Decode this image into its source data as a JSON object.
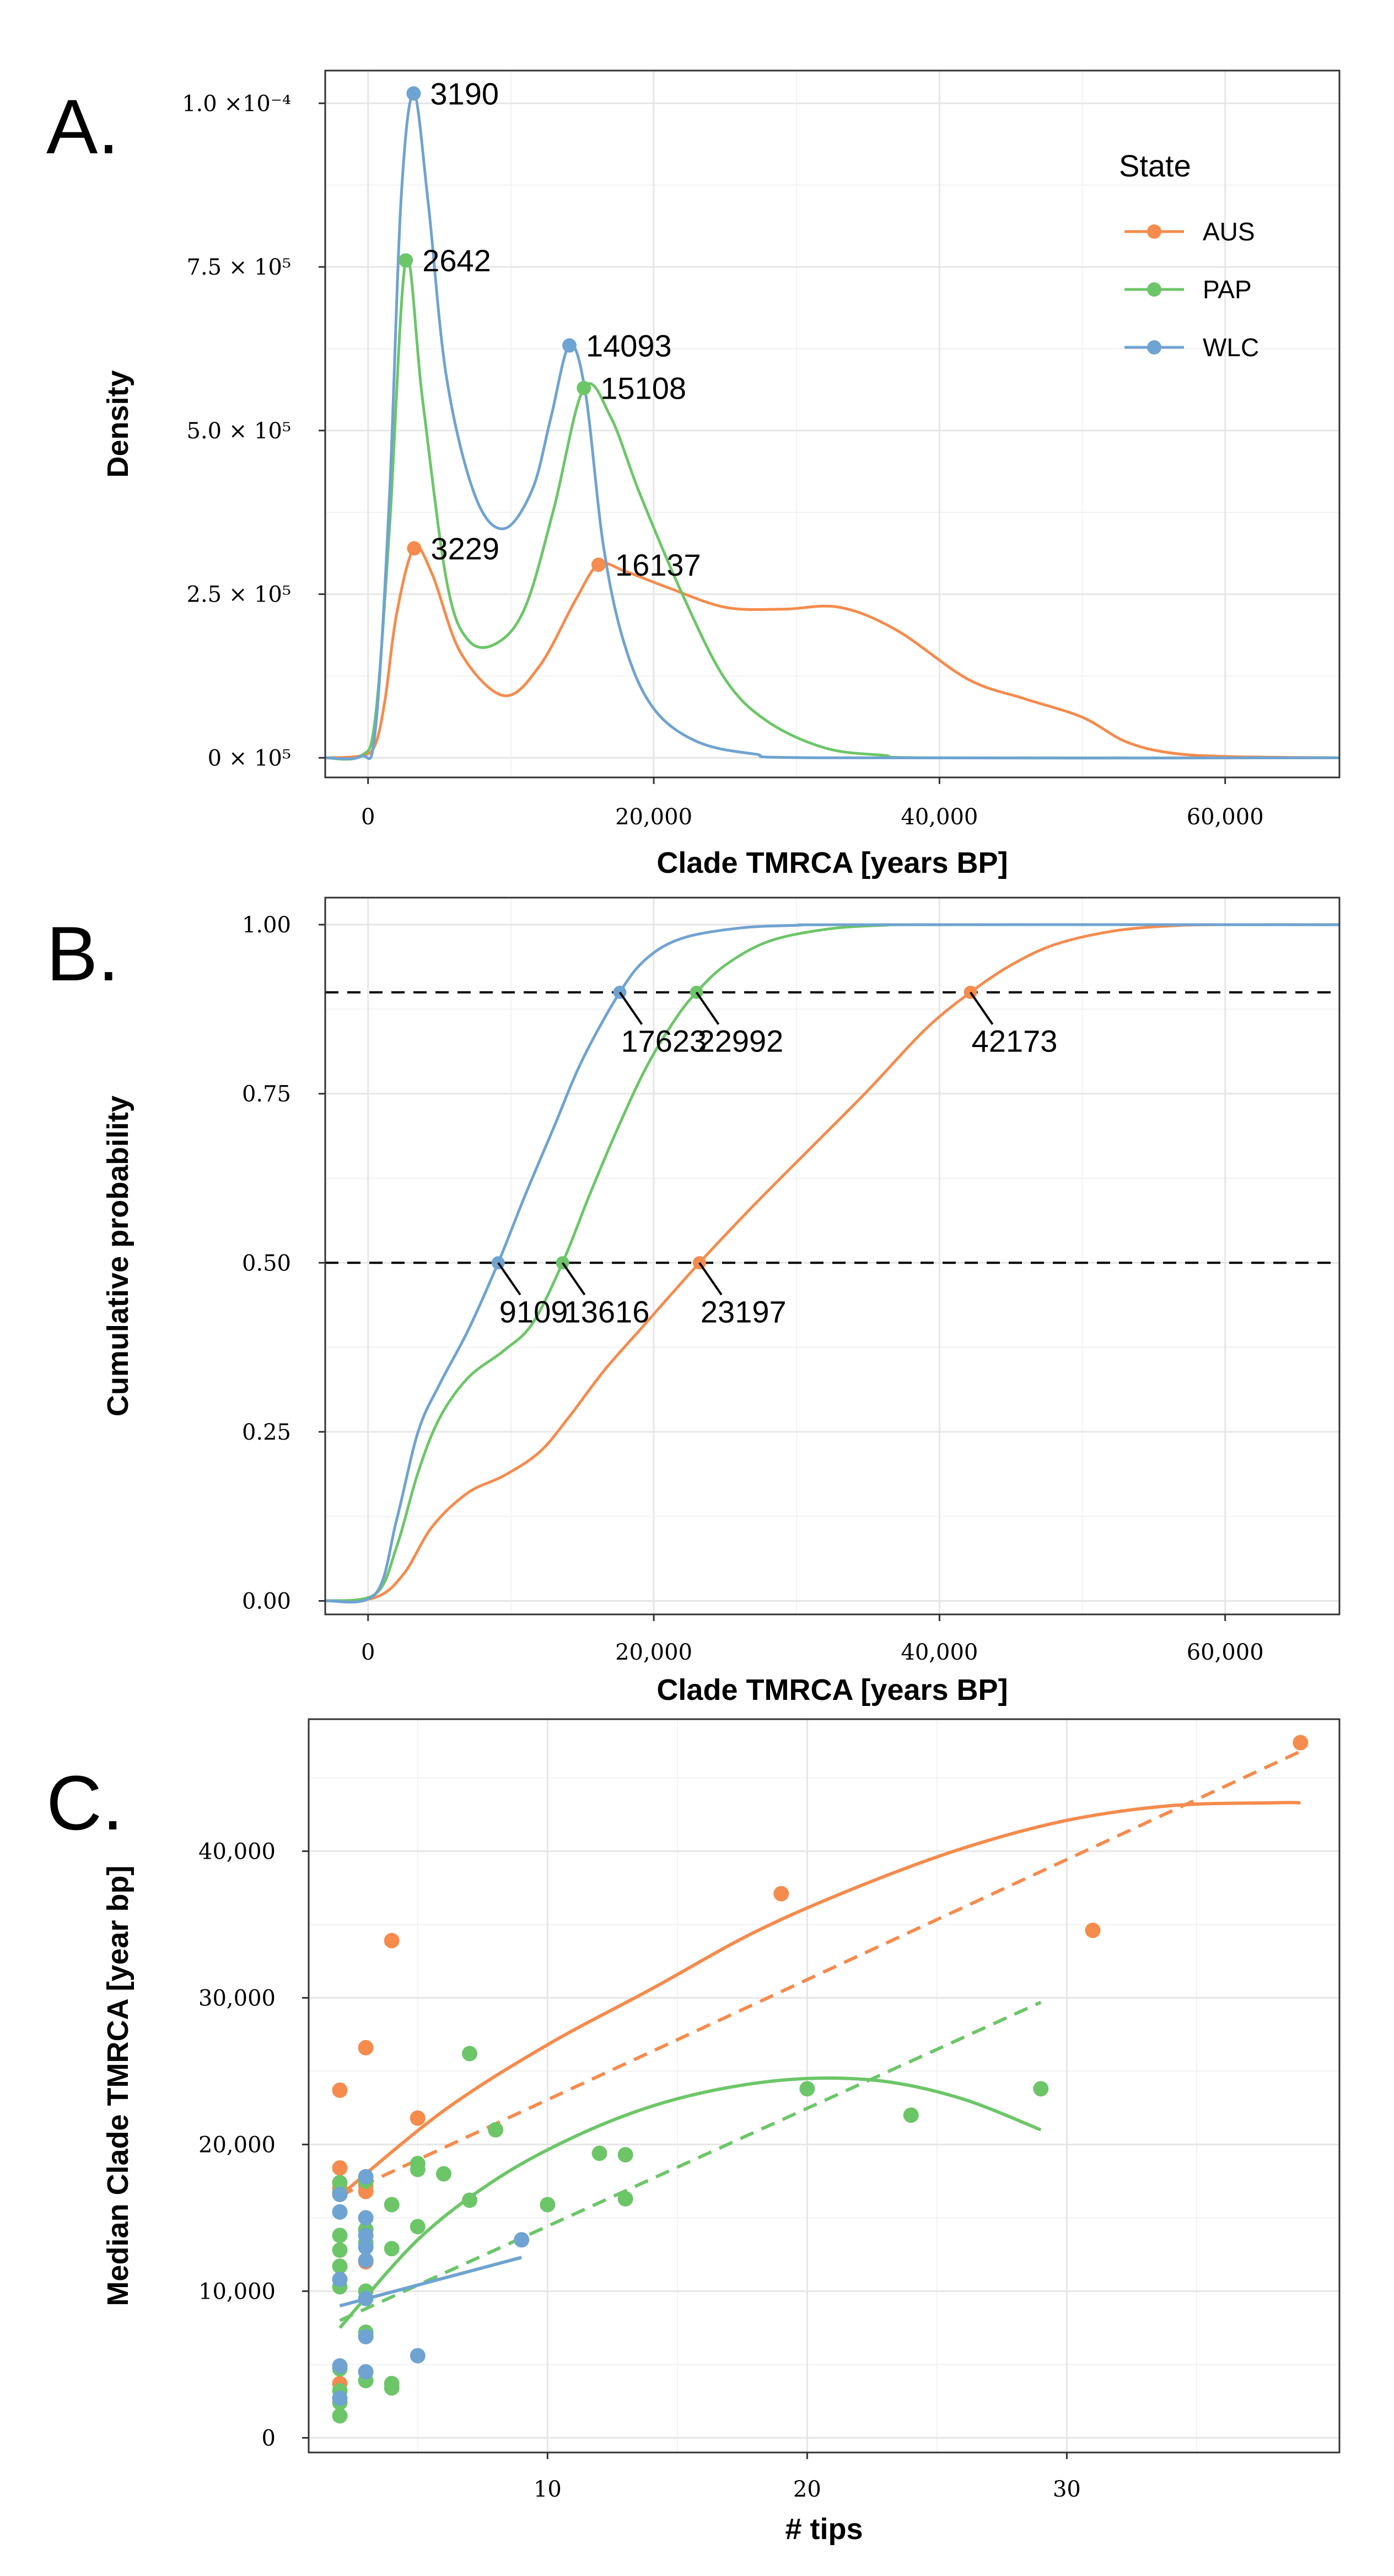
{
  "colors": {
    "AUS": "#f58b4c",
    "PAP": "#6cc668",
    "WLC": "#6fa3d1"
  },
  "chart_data": [
    {
      "type": "line",
      "panel": "A.",
      "title": "",
      "xlabel": "Clade TMRCA [years BP]",
      "ylabel": "Density",
      "xlim": [
        -3000,
        68000
      ],
      "ylim": [
        -3e-06,
        0.000105
      ],
      "xticks": [
        0,
        20000,
        40000,
        60000
      ],
      "xtick_labels": [
        "0",
        "20,000",
        "40,000",
        "60,000"
      ],
      "yticks": [
        0,
        2.5e-05,
        5e-05,
        7.5e-05,
        0.0001
      ],
      "ytick_labels": [
        "0 × 10⁵",
        "2.5 × 10⁵",
        "5.0 × 10⁵",
        "7.5 × 10⁵",
        "1.0 ×10⁻⁴"
      ],
      "legend": {
        "title": "State",
        "position": "top-right",
        "entries": [
          "AUS",
          "PAP",
          "WLC"
        ]
      },
      "series": [
        {
          "name": "AUS",
          "points": [
            [
              -3000,
              0
            ],
            [
              -500,
              3e-07
            ],
            [
              500,
              2e-06
            ],
            [
              1200,
              9e-06
            ],
            [
              2000,
              2.2e-05
            ],
            [
              3229,
              3.2e-05
            ],
            [
              4500,
              2.8e-05
            ],
            [
              6500,
              1.6e-05
            ],
            [
              9500,
              9.5e-06
            ],
            [
              12000,
              1.4e-05
            ],
            [
              14500,
              2.4e-05
            ],
            [
              16137,
              2.95e-05
            ],
            [
              18000,
              2.85e-05
            ],
            [
              21000,
              2.6e-05
            ],
            [
              25000,
              2.3e-05
            ],
            [
              29000,
              2.27e-05
            ],
            [
              33000,
              2.3e-05
            ],
            [
              37000,
              1.95e-05
            ],
            [
              42000,
              1.2e-05
            ],
            [
              46000,
              9e-06
            ],
            [
              50000,
              6.2e-06
            ],
            [
              53000,
              2.5e-06
            ],
            [
              56000,
              8e-07
            ],
            [
              60000,
              2e-07
            ],
            [
              68000,
              0
            ]
          ]
        },
        {
          "name": "PAP",
          "points": [
            [
              -3000,
              0
            ],
            [
              -500,
              3e-07
            ],
            [
              500,
              6e-06
            ],
            [
              1500,
              3.5e-05
            ],
            [
              2642,
              7.6e-05
            ],
            [
              3800,
              5.5e-05
            ],
            [
              5500,
              2.7e-05
            ],
            [
              7000,
              1.8e-05
            ],
            [
              9000,
              1.75e-05
            ],
            [
              11000,
              2.3e-05
            ],
            [
              13000,
              3.8e-05
            ],
            [
              15108,
              5.65e-05
            ],
            [
              17000,
              5.2e-05
            ],
            [
              19000,
              4.05e-05
            ],
            [
              22000,
              2.5e-05
            ],
            [
              25000,
              1.2e-05
            ],
            [
              28000,
              5.5e-06
            ],
            [
              32000,
              1.5e-06
            ],
            [
              36000,
              4e-07
            ],
            [
              40000,
              0
            ],
            [
              68000,
              0
            ]
          ]
        },
        {
          "name": "WLC",
          "points": [
            [
              -3000,
              0
            ],
            [
              -500,
              2e-07
            ],
            [
              500,
              4e-06
            ],
            [
              1500,
              4e-05
            ],
            [
              2300,
              8.5e-05
            ],
            [
              3190,
              0.0001015
            ],
            [
              4200,
              8.5e-05
            ],
            [
              5500,
              5.8e-05
            ],
            [
              7500,
              4e-05
            ],
            [
              9500,
              3.5e-05
            ],
            [
              11500,
              4.1e-05
            ],
            [
              12800,
              5.2e-05
            ],
            [
              14093,
              6.3e-05
            ],
            [
              15200,
              5.6e-05
            ],
            [
              16500,
              3.2e-05
            ],
            [
              18000,
              1.7e-05
            ],
            [
              20000,
              7.5e-06
            ],
            [
              23000,
              2.5e-06
            ],
            [
              27000,
              6e-07
            ],
            [
              32000,
              0
            ],
            [
              68000,
              0
            ]
          ]
        }
      ],
      "annotations": [
        {
          "series": "WLC",
          "x": 3190,
          "y": 0.0001015,
          "label": "3190"
        },
        {
          "series": "PAP",
          "x": 2642,
          "y": 7.6e-05,
          "label": "2642"
        },
        {
          "series": "WLC",
          "x": 14093,
          "y": 6.3e-05,
          "label": "14093"
        },
        {
          "series": "PAP",
          "x": 15108,
          "y": 5.65e-05,
          "label": "15108"
        },
        {
          "series": "AUS",
          "x": 3229,
          "y": 3.2e-05,
          "label": "3229"
        },
        {
          "series": "AUS",
          "x": 16137,
          "y": 2.95e-05,
          "label": "16137"
        }
      ]
    },
    {
      "type": "line",
      "panel": "B.",
      "title": "",
      "xlabel": "Clade TMRCA [years BP]",
      "ylabel": "Cumulative  probability",
      "xlim": [
        -3000,
        68000
      ],
      "ylim": [
        -0.02,
        1.04
      ],
      "xticks": [
        0,
        20000,
        40000,
        60000
      ],
      "xtick_labels": [
        "0",
        "20,000",
        "40,000",
        "60,000"
      ],
      "yticks": [
        0,
        0.25,
        0.5,
        0.75,
        1.0
      ],
      "ytick_labels": [
        "0.00",
        "0.25",
        "0.50",
        "0.75",
        "1.00"
      ],
      "hlines": [
        0.5,
        0.9
      ],
      "series": [
        {
          "name": "AUS",
          "points": [
            [
              -3000,
              0
            ],
            [
              500,
              0.005
            ],
            [
              2500,
              0.04
            ],
            [
              4500,
              0.11
            ],
            [
              7000,
              0.16
            ],
            [
              9500,
              0.185
            ],
            [
              12000,
              0.22
            ],
            [
              14000,
              0.27
            ],
            [
              16500,
              0.34
            ],
            [
              19000,
              0.4
            ],
            [
              23197,
              0.5
            ],
            [
              27000,
              0.585
            ],
            [
              31000,
              0.67
            ],
            [
              35000,
              0.755
            ],
            [
              39000,
              0.845
            ],
            [
              42173,
              0.9
            ],
            [
              45000,
              0.94
            ],
            [
              48000,
              0.97
            ],
            [
              52000,
              0.99
            ],
            [
              56000,
              0.998
            ],
            [
              60000,
              1.0
            ],
            [
              68000,
              1.0
            ]
          ]
        },
        {
          "name": "PAP",
          "points": [
            [
              -3000,
              0
            ],
            [
              500,
              0.01
            ],
            [
              2000,
              0.08
            ],
            [
              3500,
              0.19
            ],
            [
              5000,
              0.27
            ],
            [
              7000,
              0.33
            ],
            [
              9500,
              0.37
            ],
            [
              11500,
              0.41
            ],
            [
              13616,
              0.5
            ],
            [
              15500,
              0.6
            ],
            [
              17500,
              0.7
            ],
            [
              19500,
              0.79
            ],
            [
              21500,
              0.86
            ],
            [
              22992,
              0.9
            ],
            [
              25000,
              0.94
            ],
            [
              28000,
              0.975
            ],
            [
              32000,
              0.993
            ],
            [
              36000,
              0.999
            ],
            [
              40000,
              1.0
            ],
            [
              68000,
              1.0
            ]
          ]
        },
        {
          "name": "WLC",
          "points": [
            [
              -3000,
              0
            ],
            [
              500,
              0.01
            ],
            [
              2000,
              0.12
            ],
            [
              3500,
              0.25
            ],
            [
              5000,
              0.32
            ],
            [
              7000,
              0.4
            ],
            [
              9109,
              0.5
            ],
            [
              11000,
              0.6
            ],
            [
              13000,
              0.7
            ],
            [
              15000,
              0.8
            ],
            [
              17623,
              0.9
            ],
            [
              19500,
              0.95
            ],
            [
              22000,
              0.98
            ],
            [
              26000,
              0.995
            ],
            [
              30000,
              0.999
            ],
            [
              34000,
              1.0
            ],
            [
              68000,
              1.0
            ]
          ]
        }
      ],
      "annotations": [
        {
          "series": "WLC",
          "x": 9109,
          "y": 0.5,
          "label": "9109"
        },
        {
          "series": "PAP",
          "x": 13616,
          "y": 0.5,
          "label": "13616"
        },
        {
          "series": "AUS",
          "x": 23197,
          "y": 0.5,
          "label": "23197"
        },
        {
          "series": "WLC",
          "x": 17623,
          "y": 0.9,
          "label": "17623"
        },
        {
          "series": "PAP",
          "x": 22992,
          "y": 0.9,
          "label": "22992"
        },
        {
          "series": "AUS",
          "x": 42173,
          "y": 0.9,
          "label": "42173"
        }
      ]
    },
    {
      "type": "scatter",
      "panel": "C.",
      "title": "",
      "xlabel": "# tips",
      "ylabel": "Median Clade TMRCA [year bp]",
      "xlim": [
        0.8,
        40.5
      ],
      "ylim": [
        -1000,
        49000
      ],
      "xticks": [
        10,
        20,
        30
      ],
      "xtick_labels": [
        "10",
        "20",
        "30"
      ],
      "yticks": [
        0,
        10000,
        20000,
        30000,
        40000
      ],
      "ytick_labels": [
        "0",
        "10,000",
        "20,000",
        "30,000",
        "40,000"
      ],
      "points": {
        "AUS": [
          [
            2,
            23700
          ],
          [
            2,
            18400
          ],
          [
            2,
            17000
          ],
          [
            2,
            16600
          ],
          [
            2,
            3700
          ],
          [
            3,
            26600
          ],
          [
            3,
            17200
          ],
          [
            3,
            16800
          ],
          [
            3,
            12000
          ],
          [
            4,
            33900
          ],
          [
            5,
            21800
          ],
          [
            19,
            37100
          ],
          [
            31,
            34600
          ],
          [
            39,
            47400
          ]
        ],
        "PAP": [
          [
            2,
            17400
          ],
          [
            2,
            16700
          ],
          [
            2,
            15400
          ],
          [
            2,
            13800
          ],
          [
            2,
            12800
          ],
          [
            2,
            11700
          ],
          [
            2,
            10300
          ],
          [
            2,
            4700
          ],
          [
            2,
            3200
          ],
          [
            2,
            2400
          ],
          [
            2,
            1500
          ],
          [
            3,
            17500
          ],
          [
            3,
            14200
          ],
          [
            3,
            13300
          ],
          [
            3,
            10000
          ],
          [
            3,
            7200
          ],
          [
            3,
            3900
          ],
          [
            4,
            15900
          ],
          [
            4,
            12900
          ],
          [
            4,
            3700
          ],
          [
            4,
            3400
          ],
          [
            5,
            18700
          ],
          [
            5,
            18300
          ],
          [
            5,
            14400
          ],
          [
            6,
            18000
          ],
          [
            7,
            26200
          ],
          [
            7,
            16200
          ],
          [
            8,
            21000
          ],
          [
            10,
            15900
          ],
          [
            12,
            19400
          ],
          [
            13,
            19300
          ],
          [
            13,
            16300
          ],
          [
            20,
            23800
          ],
          [
            24,
            22000
          ],
          [
            29,
            23800
          ]
        ],
        "WLC": [
          [
            2,
            16600
          ],
          [
            2,
            15400
          ],
          [
            2,
            10800
          ],
          [
            2,
            4900
          ],
          [
            2,
            2700
          ],
          [
            3,
            17800
          ],
          [
            3,
            15000
          ],
          [
            3,
            13800
          ],
          [
            3,
            13000
          ],
          [
            3,
            12100
          ],
          [
            3,
            9500
          ],
          [
            3,
            6900
          ],
          [
            3,
            4500
          ],
          [
            5,
            5600
          ],
          [
            9,
            13500
          ]
        ]
      },
      "fits": [
        {
          "series": "AUS",
          "style": "solid",
          "points": [
            [
              2,
              16500
            ],
            [
              6,
              22300
            ],
            [
              10,
              26800
            ],
            [
              14,
              30600
            ],
            [
              18,
              34500
            ],
            [
              22,
              37600
            ],
            [
              26,
              40200
            ],
            [
              30,
              42100
            ],
            [
              34,
              43100
            ],
            [
              38,
              43300
            ],
            [
              39,
              43300
            ]
          ]
        },
        {
          "series": "AUS",
          "style": "dashed",
          "points": [
            [
              2,
              16500
            ],
            [
              39,
              46800
            ]
          ]
        },
        {
          "series": "PAP",
          "style": "solid",
          "points": [
            [
              2,
              7500
            ],
            [
              5,
              13500
            ],
            [
              8,
              17600
            ],
            [
              11,
              20500
            ],
            [
              14,
              22600
            ],
            [
              17,
              23900
            ],
            [
              20,
              24500
            ],
            [
              23,
              24300
            ],
            [
              26,
              23100
            ],
            [
              29,
              21000
            ]
          ]
        },
        {
          "series": "PAP",
          "style": "dashed",
          "points": [
            [
              2,
              8000
            ],
            [
              29,
              29700
            ]
          ]
        },
        {
          "series": "WLC",
          "style": "solid",
          "points": [
            [
              2,
              9000
            ],
            [
              9,
              12300
            ]
          ]
        }
      ]
    }
  ]
}
